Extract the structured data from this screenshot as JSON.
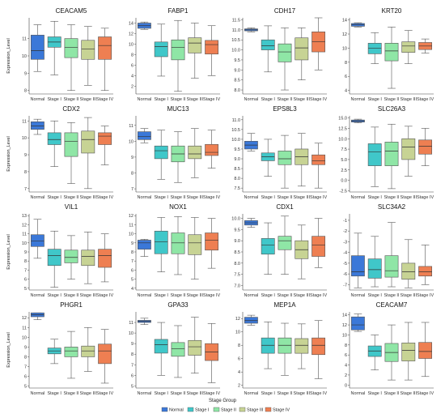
{
  "figure": {
    "colors": {
      "Normal": "#3b78d8",
      "Stage I": "#40c7c9",
      "Stage II": "#8fe6a6",
      "Stage III": "#c7d394",
      "Stage IV": "#ee7f52"
    }
  },
  "legend": {
    "title": "Stage Group",
    "items": [
      "Normal",
      "Stage I",
      "Stage II",
      "Stage III",
      "Stage IV"
    ]
  },
  "chart_data": [
    {
      "type": "box",
      "title": "CEACAM5",
      "ylabel": "Expression_Level",
      "ylim": [
        7.8,
        12.2
      ],
      "yticks": [
        8,
        9,
        10,
        11
      ],
      "categories": [
        "Normal",
        "Stage I",
        "Stage II",
        "Stage III",
        "Stage IV"
      ],
      "boxes": [
        [
          9.1,
          9.8,
          10.3,
          11.2,
          11.8
        ],
        [
          8.9,
          10.5,
          10.8,
          11.1,
          12.0
        ],
        [
          8.0,
          9.9,
          10.5,
          11.0,
          11.8
        ],
        [
          8.3,
          9.8,
          10.4,
          10.9,
          11.7
        ],
        [
          8.0,
          9.8,
          10.6,
          11.1,
          11.6
        ]
      ]
    },
    {
      "type": "box",
      "title": "FABP1",
      "ylabel": "",
      "ylim": [
        0.5,
        15
      ],
      "yticks": [
        2,
        4,
        6,
        8,
        10,
        12,
        14
      ],
      "categories": [
        "Normal",
        "Stage I",
        "Stage II",
        "Stage III",
        "Stage IV"
      ],
      "boxes": [
        [
          12.8,
          13.0,
          13.5,
          14.0,
          14.2
        ],
        [
          3.9,
          7.6,
          9.5,
          10.4,
          13.8
        ],
        [
          1.0,
          7.0,
          9.4,
          10.8,
          14.5
        ],
        [
          3.5,
          8.3,
          10.2,
          11.2,
          14.0
        ],
        [
          4.0,
          8.1,
          9.9,
          10.7,
          13.5
        ]
      ]
    },
    {
      "type": "box",
      "title": "CDH17",
      "ylabel": "",
      "ylim": [
        7.8,
        11.6
      ],
      "yticks": [
        8.0,
        8.5,
        9.0,
        9.5,
        10.0,
        10.5,
        11.0,
        11.5
      ],
      "categories": [
        "Normal",
        "Stage I",
        "Stage II",
        "Stage III",
        "Stage IV"
      ],
      "boxes": [
        [
          10.9,
          10.95,
          11.0,
          11.05,
          11.1
        ],
        [
          8.9,
          10.0,
          10.2,
          10.5,
          11.2
        ],
        [
          8.0,
          9.4,
          9.9,
          10.3,
          11.1
        ],
        [
          8.5,
          9.5,
          10.1,
          10.6,
          11.1
        ],
        [
          9.0,
          9.9,
          10.4,
          10.9,
          11.6
        ]
      ]
    },
    {
      "type": "box",
      "title": "KRT20",
      "ylabel": "",
      "ylim": [
        3.5,
        14.3
      ],
      "yticks": [
        4,
        6,
        8,
        10,
        12,
        14
      ],
      "categories": [
        "Normal",
        "Stage I",
        "Stage II",
        "Stage III",
        "Stage IV"
      ],
      "boxes": [
        [
          13.0,
          13.1,
          13.3,
          13.5,
          13.6
        ],
        [
          7.8,
          9.2,
          10.0,
          10.7,
          12.2
        ],
        [
          4.3,
          8.2,
          9.6,
          10.7,
          13.0
        ],
        [
          7.8,
          9.4,
          10.3,
          10.9,
          12.5
        ],
        [
          9.3,
          9.8,
          10.3,
          10.8,
          11.3
        ]
      ]
    },
    {
      "type": "box",
      "title": "CDX2",
      "ylabel": "Expression_Level",
      "ylim": [
        6.8,
        11.3
      ],
      "yticks": [
        7,
        8,
        9,
        10,
        11
      ],
      "categories": [
        "Normal",
        "Stage I",
        "Stage II",
        "Stage III",
        "Stage IV"
      ],
      "boxes": [
        [
          10.2,
          10.5,
          10.7,
          10.95,
          11.1
        ],
        [
          8.3,
          9.6,
          9.9,
          10.3,
          11.0
        ],
        [
          7.3,
          8.9,
          9.8,
          10.3,
          10.9
        ],
        [
          7.0,
          9.1,
          9.9,
          10.4,
          11.2
        ],
        [
          8.4,
          9.6,
          10.1,
          10.3,
          10.7
        ]
      ]
    },
    {
      "type": "box",
      "title": "MUC13",
      "ylabel": "",
      "ylim": [
        6.8,
        11.6
      ],
      "yticks": [
        7,
        8,
        9,
        10,
        11
      ],
      "categories": [
        "Normal",
        "Stage I",
        "Stage II",
        "Stage III",
        "Stage IV"
      ],
      "boxes": [
        [
          9.9,
          10.1,
          10.3,
          10.6,
          10.8
        ],
        [
          7.6,
          8.9,
          9.4,
          9.7,
          10.7
        ],
        [
          7.4,
          8.7,
          9.2,
          9.7,
          10.6
        ],
        [
          7.7,
          8.9,
          9.2,
          9.7,
          10.8
        ],
        [
          8.3,
          9.1,
          9.3,
          9.8,
          10.7
        ]
      ]
    },
    {
      "type": "box",
      "title": "EPS8L3",
      "ylabel": "",
      "ylim": [
        7.3,
        11.2
      ],
      "yticks": [
        7.5,
        8.0,
        8.5,
        9.0,
        9.5,
        10.0,
        10.5,
        11.0
      ],
      "categories": [
        "Normal",
        "Stage I",
        "Stage II",
        "Stage III",
        "Stage IV"
      ],
      "boxes": [
        [
          9.4,
          9.5,
          9.7,
          9.9,
          10.3
        ],
        [
          8.1,
          8.9,
          9.1,
          9.3,
          10.0
        ],
        [
          7.5,
          8.7,
          9.0,
          9.4,
          10.2
        ],
        [
          7.6,
          8.7,
          9.1,
          9.5,
          10.3
        ],
        [
          7.5,
          8.7,
          8.9,
          9.2,
          9.8
        ]
      ]
    },
    {
      "type": "box",
      "title": "SLC26A3",
      "ylabel": "",
      "ylim": [
        -2.8,
        15.5
      ],
      "yticks": [
        -2.5,
        0.0,
        2.5,
        5.0,
        7.5,
        10.0,
        12.5,
        15.0
      ],
      "categories": [
        "Normal",
        "Stage I",
        "Stage II",
        "Stage III",
        "Stage IV"
      ],
      "boxes": [
        [
          13.8,
          14.0,
          14.3,
          14.5,
          14.7
        ],
        [
          -1.5,
          3.5,
          6.8,
          8.8,
          12.8
        ],
        [
          -2.0,
          3.5,
          7.0,
          9.2,
          13.5
        ],
        [
          1.0,
          5.0,
          8.0,
          10.0,
          13.0
        ],
        [
          3.5,
          6.3,
          8.2,
          9.7,
          12.5
        ]
      ]
    },
    {
      "type": "box",
      "title": "VIL1",
      "ylabel": "Expression_Level",
      "ylim": [
        4.8,
        13.2
      ],
      "yticks": [
        5,
        6,
        7,
        8,
        9,
        10,
        11,
        12,
        13
      ],
      "categories": [
        "Normal",
        "Stage I",
        "Stage II",
        "Stage III",
        "Stage IV"
      ],
      "boxes": [
        [
          8.3,
          9.6,
          10.2,
          10.9,
          12.6
        ],
        [
          5.1,
          7.5,
          8.6,
          9.3,
          11.3
        ],
        [
          6.0,
          7.8,
          8.4,
          9.2,
          10.8
        ],
        [
          5.5,
          7.5,
          8.5,
          9.2,
          11.2
        ],
        [
          5.7,
          7.3,
          8.6,
          9.3,
          11.0
        ]
      ]
    },
    {
      "type": "box",
      "title": "NOX1",
      "ylabel": "",
      "ylim": [
        3.8,
        12.2
      ],
      "yticks": [
        4,
        5,
        6,
        7,
        8,
        9,
        10,
        11,
        12
      ],
      "categories": [
        "Normal",
        "Stage I",
        "Stage II",
        "Stage III",
        "Stage IV"
      ],
      "boxes": [
        [
          7.5,
          8.3,
          9.0,
          9.3,
          9.4
        ],
        [
          5.8,
          7.8,
          9.1,
          10.3,
          11.8
        ],
        [
          5.5,
          7.8,
          9.0,
          10.1,
          11.9
        ],
        [
          5.0,
          7.7,
          9.0,
          9.9,
          11.8
        ],
        [
          6.2,
          8.2,
          9.3,
          10.1,
          11.7
        ]
      ]
    },
    {
      "type": "box",
      "title": "CDX1",
      "ylabel": "",
      "ylim": [
        6.8,
        10.2
      ],
      "yticks": [
        7.0,
        7.5,
        8.0,
        8.5,
        9.0,
        9.5,
        10.0
      ],
      "categories": [
        "Normal",
        "Stage I",
        "Stage II",
        "Stage III",
        "Stage IV"
      ],
      "boxes": [
        [
          9.6,
          9.7,
          9.8,
          9.9,
          10.0
        ],
        [
          7.5,
          8.4,
          8.8,
          9.1,
          9.8
        ],
        [
          7.5,
          8.6,
          9.0,
          9.2,
          10.1
        ],
        [
          7.3,
          8.2,
          8.6,
          9.0,
          9.7
        ],
        [
          7.8,
          8.3,
          8.8,
          9.2,
          10.0
        ]
      ]
    },
    {
      "type": "box",
      "title": "SLC34A2",
      "ylabel": "",
      "ylim": [
        -7.5,
        -0.4
      ],
      "yticks": [
        -7,
        -6,
        -5,
        -4,
        -3,
        -2,
        -1
      ],
      "categories": [
        "Normal",
        "Stage I",
        "Stage II",
        "Stage III",
        "Stage IV"
      ],
      "boxes": [
        [
          -7.3,
          -6.2,
          -5.8,
          -4.3,
          -2.2
        ],
        [
          -7.2,
          -6.4,
          -5.6,
          -4.6,
          -2.5
        ],
        [
          -7.2,
          -6.3,
          -5.7,
          -4.3,
          -1.2
        ],
        [
          -7.3,
          -6.5,
          -5.8,
          -5.0,
          -2.8
        ],
        [
          -7.0,
          -6.2,
          -5.8,
          -5.3,
          -3.3
        ]
      ]
    },
    {
      "type": "box",
      "title": "PHGR1",
      "ylabel": "Expression_Level",
      "ylim": [
        4.8,
        12.6
      ],
      "yticks": [
        5,
        6,
        7,
        8,
        9,
        10,
        11,
        12
      ],
      "categories": [
        "Normal",
        "Stage I",
        "Stage II",
        "Stage III",
        "Stage IV"
      ],
      "boxes": [
        [
          11.8,
          12.1,
          12.3,
          12.5,
          12.5
        ],
        [
          7.3,
          8.3,
          8.6,
          8.9,
          9.8
        ],
        [
          5.8,
          8.0,
          8.6,
          9.0,
          10.6
        ],
        [
          6.5,
          8.0,
          8.6,
          9.1,
          11.0
        ],
        [
          5.3,
          7.3,
          8.6,
          9.3,
          10.8
        ]
      ]
    },
    {
      "type": "box",
      "title": "GPA33",
      "ylabel": "",
      "ylim": [
        4.8,
        12.0
      ],
      "yticks": [
        5,
        6,
        7,
        8,
        9,
        10,
        11
      ],
      "categories": [
        "Normal",
        "Stage I",
        "Stage II",
        "Stage III",
        "Stage IV"
      ],
      "boxes": [
        [
          10.8,
          11.0,
          11.1,
          11.2,
          11.4
        ],
        [
          6.0,
          8.1,
          8.9,
          9.4,
          11.0
        ],
        [
          5.8,
          7.8,
          8.5,
          9.1,
          10.7
        ],
        [
          6.2,
          7.9,
          8.7,
          9.3,
          11.5
        ],
        [
          5.3,
          7.4,
          8.2,
          9.0,
          10.9
        ]
      ]
    },
    {
      "type": "box",
      "title": "MEP1A",
      "ylabel": "",
      "ylim": [
        1.6,
        13.0
      ],
      "yticks": [
        2,
        4,
        6,
        8,
        10,
        12
      ],
      "categories": [
        "Normal",
        "Stage I",
        "Stage II",
        "Stage III",
        "Stage IV"
      ],
      "boxes": [
        [
          11.0,
          11.3,
          11.7,
          12.2,
          12.5
        ],
        [
          4.5,
          6.8,
          8.0,
          9.1,
          11.5
        ],
        [
          3.5,
          6.8,
          8.0,
          9.1,
          11.3
        ],
        [
          4.5,
          6.8,
          8.0,
          9.0,
          11.2
        ],
        [
          3.0,
          6.6,
          8.0,
          9.1,
          11.7
        ]
      ]
    },
    {
      "type": "box",
      "title": "CEACAM7",
      "ylabel": "",
      "ylim": [
        -0.6,
        14.6
      ],
      "yticks": [
        0,
        2,
        4,
        6,
        8,
        10,
        12,
        14
      ],
      "categories": [
        "Normal",
        "Stage I",
        "Stage II",
        "Stage III",
        "Stage IV"
      ],
      "boxes": [
        [
          10.7,
          11.0,
          12.0,
          13.6,
          14.2
        ],
        [
          3.0,
          5.7,
          6.8,
          7.8,
          10.0
        ],
        [
          1.0,
          4.7,
          6.5,
          8.3,
          12.0
        ],
        [
          1.0,
          4.8,
          6.9,
          8.4,
          12.5
        ],
        [
          1.7,
          5.3,
          6.7,
          8.5,
          12.5
        ]
      ]
    }
  ]
}
